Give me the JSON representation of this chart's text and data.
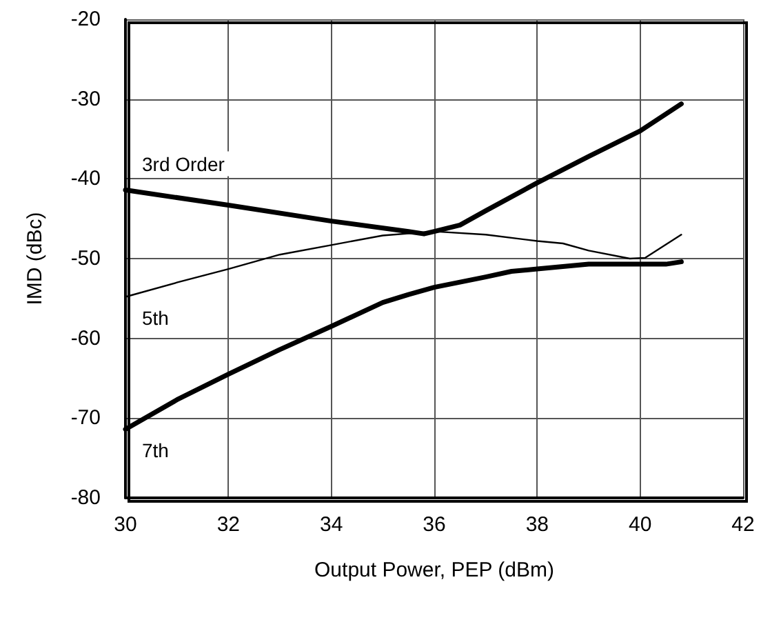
{
  "chart_data": {
    "type": "line",
    "xlabel": "Output Power, PEP (dBm)",
    "ylabel": "IMD (dBc)",
    "xlim": [
      30,
      42
    ],
    "xticks": [
      30,
      32,
      34,
      36,
      38,
      40,
      42
    ],
    "ylim": [
      -80,
      -20
    ],
    "yticks": [
      -80,
      -70,
      -60,
      -50,
      -40,
      -30,
      -20
    ],
    "grid": true,
    "marker": "none",
    "line_style": "solid",
    "series": [
      {
        "name": "3rd Order",
        "color": "#000000",
        "x": [
          30,
          32,
          34,
          35.5,
          35.8,
          36,
          36.5,
          37,
          38,
          39,
          40,
          40.8
        ],
        "values": [
          -41.4,
          -43.3,
          -45.3,
          -46.6,
          -46.9,
          -46.6,
          -45.8,
          -44,
          -40.5,
          -37.2,
          -34,
          -30.6
        ]
      },
      {
        "name": "5th",
        "color": "#000000",
        "x": [
          30,
          31,
          32,
          33,
          34,
          35,
          36,
          37,
          38,
          38.5,
          39,
          39.8,
          40.1,
          40.8
        ],
        "values": [
          -54.8,
          -53,
          -51.3,
          -49.5,
          -48.3,
          -47.1,
          -46.6,
          -47,
          -47.8,
          -48.1,
          -49,
          -50,
          -49.9,
          -47
        ]
      },
      {
        "name": "7th",
        "color": "#000000",
        "x": [
          30,
          31,
          32,
          33,
          34,
          35,
          35.5,
          36,
          37,
          37.5,
          38,
          39,
          40,
          40.5,
          40.8
        ],
        "values": [
          -71.4,
          -67.7,
          -64.5,
          -61.4,
          -58.5,
          -55.5,
          -54.5,
          -53.6,
          -52.3,
          -51.6,
          -51.3,
          -50.7,
          -50.7,
          -50.7,
          -50.4
        ]
      }
    ]
  }
}
